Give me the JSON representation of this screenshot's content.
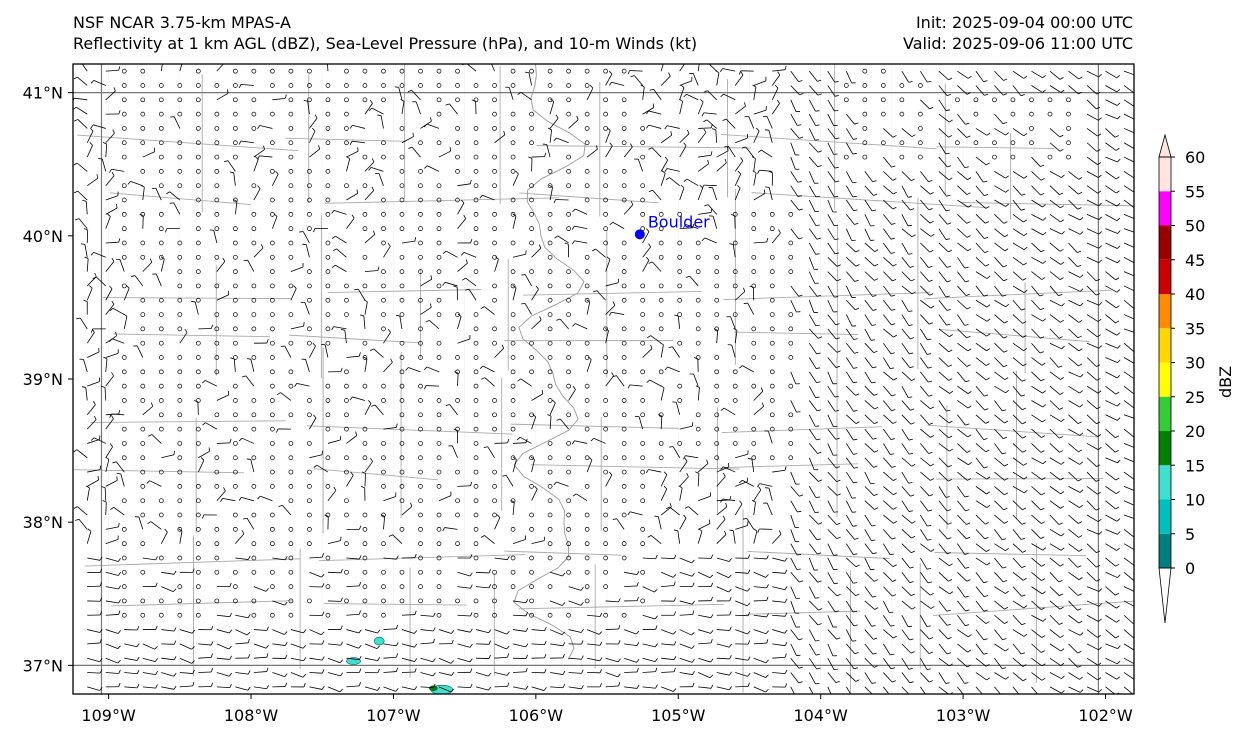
{
  "header": {
    "model": "NSF NCAR 3.75-km MPAS-A",
    "fields": "Reflectivity at 1 km AGL (dBZ), Sea-Level Pressure (hPa), and 10-m Winds (kt)",
    "init": "Init: 2025-09-04 00:00 UTC",
    "valid": "Valid: 2025-09-06 11:00 UTC"
  },
  "map": {
    "lat_range": [
      36.8,
      41.2
    ],
    "lon_range": [
      -109.25,
      -101.8
    ],
    "lat_ticks": [
      {
        "value": 41,
        "label": "41°N"
      },
      {
        "value": 40,
        "label": "40°N"
      },
      {
        "value": 39,
        "label": "39°N"
      },
      {
        "value": 38,
        "label": "38°N"
      },
      {
        "value": 37,
        "label": "37°N"
      }
    ],
    "lon_ticks": [
      {
        "value": -109,
        "label": "109°W"
      },
      {
        "value": -108,
        "label": "108°W"
      },
      {
        "value": -107,
        "label": "107°W"
      },
      {
        "value": -106,
        "label": "106°W"
      },
      {
        "value": -105,
        "label": "105°W"
      },
      {
        "value": -104,
        "label": "104°W"
      },
      {
        "value": -103,
        "label": "103°W"
      },
      {
        "value": -102,
        "label": "102°W"
      }
    ],
    "city": {
      "name": "Boulder",
      "lat": 40.01,
      "lon": -105.27,
      "color": "#0000ff"
    },
    "border_color": "#888888",
    "state_line_color": "#777777"
  },
  "colorbar": {
    "label": "dBZ",
    "levels": [
      0,
      5,
      10,
      15,
      20,
      25,
      30,
      35,
      40,
      45,
      50,
      55,
      60
    ],
    "tick_labels": [
      "0",
      "5",
      "10",
      "15",
      "20",
      "25",
      "30",
      "35",
      "40",
      "45",
      "50",
      "55",
      "60"
    ],
    "colors": [
      "#007f7f",
      "#00bfbf",
      "#40e0d0",
      "#008000",
      "#32cd32",
      "#ffff00",
      "#ffd700",
      "#ff8c00",
      "#cc0000",
      "#990000",
      "#ff00ff",
      "#ffe4e1"
    ],
    "extend": "both"
  }
}
